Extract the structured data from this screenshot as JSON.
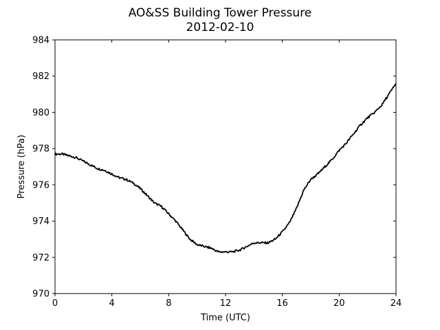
{
  "chart_data": {
    "type": "line",
    "title": "AO&SS Building Tower Pressure",
    "subtitle": "2012-02-10",
    "xlabel": "Time (UTC)",
    "ylabel": "Pressure (hPa)",
    "xlim": [
      0,
      24
    ],
    "ylim": [
      970,
      984
    ],
    "xticks": [
      0,
      4,
      8,
      12,
      16,
      20,
      24
    ],
    "yticks": [
      970,
      972,
      974,
      976,
      978,
      980,
      982,
      984
    ],
    "grid": false,
    "line_color": "#000000",
    "series": [
      {
        "x": [
          0,
          0.5,
          1.0,
          1.5,
          2.0,
          2.5,
          3.0,
          3.5,
          4.0,
          4.5,
          5.0,
          5.5,
          6.0,
          6.5,
          7.0,
          7.5,
          8.0,
          8.5,
          9.0,
          9.5,
          10.0,
          10.5,
          11.0,
          11.5,
          12.0,
          12.5,
          13.0,
          13.5,
          14.0,
          14.5,
          15.0,
          15.5,
          16.0,
          16.5,
          17.0,
          17.5,
          18.0,
          18.5,
          19.0,
          19.5,
          20.0,
          20.5,
          21.0,
          21.5,
          22.0,
          22.5,
          23.0,
          23.5,
          24.0
        ],
        "y": [
          977.7,
          977.7,
          977.6,
          977.5,
          977.3,
          977.1,
          976.9,
          976.8,
          976.6,
          976.4,
          976.3,
          976.1,
          975.8,
          975.4,
          975.0,
          974.8,
          974.4,
          974.0,
          973.5,
          973.0,
          972.7,
          972.6,
          972.5,
          972.3,
          972.3,
          972.3,
          972.4,
          972.6,
          972.8,
          972.8,
          972.8,
          973.0,
          973.4,
          973.9,
          974.7,
          975.7,
          976.3,
          976.6,
          977.0,
          977.4,
          977.9,
          978.3,
          978.8,
          979.3,
          979.7,
          980.0,
          980.4,
          981.0,
          981.6
        ]
      }
    ]
  }
}
